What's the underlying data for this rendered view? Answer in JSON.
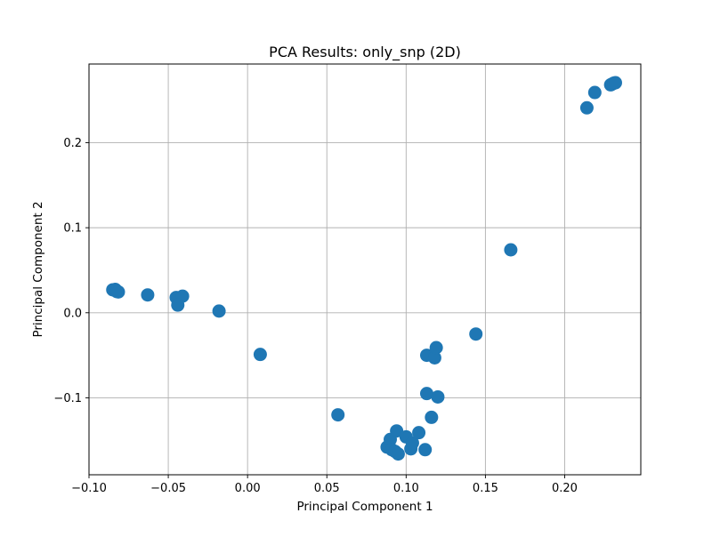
{
  "chart_data": {
    "type": "scatter",
    "title": "PCA Results: only_snp (2D)",
    "xlabel": "Principal Component 1",
    "ylabel": "Principal Component 2",
    "xlim": [
      -0.1,
      0.248
    ],
    "ylim": [
      -0.1905,
      0.2925
    ],
    "xticks": [
      -0.1,
      -0.05,
      0.0,
      0.05,
      0.1,
      0.15,
      0.2
    ],
    "xtick_labels": [
      "−0.10",
      "−0.05",
      "0.00",
      "0.05",
      "0.10",
      "0.15",
      "0.20"
    ],
    "yticks": [
      -0.1,
      0.0,
      0.1,
      0.2
    ],
    "ytick_labels": [
      "−0.1",
      "0.0",
      "0.1",
      "0.2"
    ],
    "grid": true,
    "marker_color": "#1f77b4",
    "series": [
      {
        "points": [
          [
            -0.085,
            0.027
          ],
          [
            -0.0835,
            0.0275
          ],
          [
            -0.083,
            0.026
          ],
          [
            -0.0825,
            0.025
          ],
          [
            -0.0815,
            0.0245
          ],
          [
            -0.063,
            0.021
          ],
          [
            -0.045,
            0.018
          ],
          [
            -0.041,
            0.0195
          ],
          [
            -0.044,
            0.009
          ],
          [
            -0.018,
            0.002
          ],
          [
            0.008,
            -0.049
          ],
          [
            0.057,
            -0.12
          ],
          [
            0.088,
            -0.158
          ],
          [
            0.09,
            -0.149
          ],
          [
            0.091,
            -0.161
          ],
          [
            0.093,
            -0.163
          ],
          [
            0.095,
            -0.166
          ],
          [
            0.094,
            -0.139
          ],
          [
            0.1,
            -0.146
          ],
          [
            0.103,
            -0.16
          ],
          [
            0.104,
            -0.153
          ],
          [
            0.108,
            -0.141
          ],
          [
            0.112,
            -0.161
          ],
          [
            0.113,
            -0.095
          ],
          [
            0.113,
            -0.05
          ],
          [
            0.116,
            -0.123
          ],
          [
            0.118,
            -0.053
          ],
          [
            0.119,
            -0.041
          ],
          [
            0.12,
            -0.099
          ],
          [
            0.144,
            -0.025
          ],
          [
            0.166,
            0.074
          ],
          [
            0.214,
            0.241
          ],
          [
            0.219,
            0.259
          ],
          [
            0.229,
            0.268
          ],
          [
            0.23,
            0.269
          ],
          [
            0.231,
            0.27
          ],
          [
            0.232,
            0.2705
          ]
        ]
      }
    ]
  }
}
